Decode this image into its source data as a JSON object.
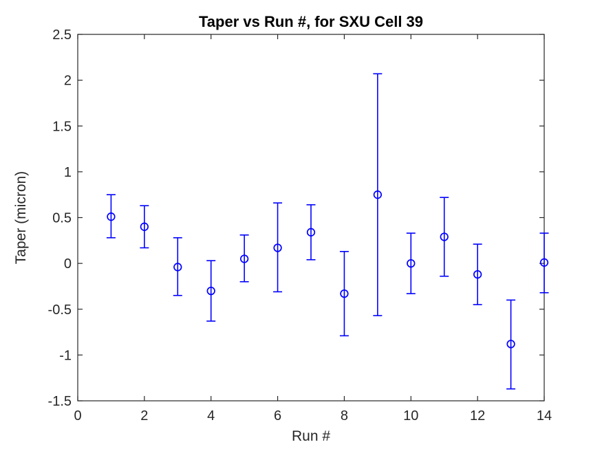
{
  "chart_data": {
    "type": "scatter",
    "variant": "errorbar",
    "title": "Taper vs Run #, for SXU Cell 39",
    "xlabel": "Run #",
    "ylabel": "Taper (micron)",
    "xlim": [
      0,
      14
    ],
    "ylim": [
      -1.5,
      2.5
    ],
    "xticks": [
      0,
      2,
      4,
      6,
      8,
      10,
      12,
      14
    ],
    "yticks": [
      -1.5,
      -1,
      -0.5,
      0,
      0.5,
      1,
      1.5,
      2,
      2.5
    ],
    "grid": false,
    "legend": false,
    "marker": "open-circle",
    "series": [
      {
        "name": "taper",
        "color": "#0000FF",
        "x": [
          1,
          2,
          3,
          4,
          5,
          6,
          7,
          8,
          9,
          10,
          11,
          12,
          13,
          14
        ],
        "y": [
          0.51,
          0.4,
          -0.04,
          -0.3,
          0.05,
          0.17,
          0.34,
          -0.33,
          0.75,
          0.0,
          0.29,
          -0.12,
          -0.88,
          0.01
        ],
        "err_lower_bound": [
          0.28,
          0.17,
          -0.35,
          -0.63,
          -0.2,
          -0.31,
          0.04,
          -0.79,
          -0.57,
          -0.33,
          -0.14,
          -0.45,
          -1.37,
          -0.32
        ],
        "err_upper_bound": [
          0.75,
          0.63,
          0.28,
          0.03,
          0.31,
          0.66,
          0.64,
          0.13,
          2.07,
          0.33,
          0.72,
          0.21,
          -0.4,
          0.33
        ]
      }
    ],
    "colors": {
      "series": "#0000FF",
      "axis": "#262626",
      "title": "#000000",
      "background": "#FFFFFF"
    }
  }
}
